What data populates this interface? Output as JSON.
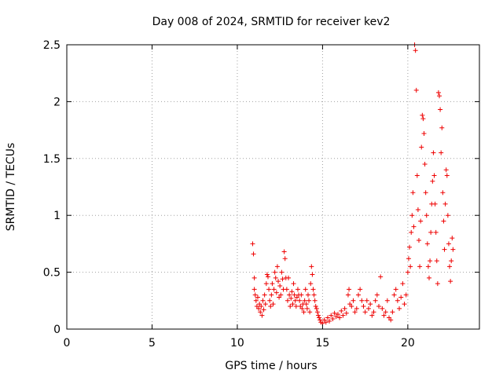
{
  "chart_data": {
    "type": "scatter",
    "title": "Day 008 of 2024, SRMTID for receiver kev2",
    "xlabel": "GPS time / hours",
    "ylabel": "SRMTID / TECUs",
    "xlim": [
      0,
      24.2
    ],
    "ylim": [
      0,
      2.5
    ],
    "xticks": [
      0,
      5,
      10,
      15,
      20
    ],
    "xtick_labels": [
      "0",
      "5",
      "10",
      "15",
      "20"
    ],
    "yticks": [
      0,
      0.5,
      1,
      1.5,
      2,
      2.5
    ],
    "ytick_labels": [
      "0",
      "0.5",
      "1",
      "1.5",
      "2",
      "2.5"
    ],
    "grid": true,
    "marker": "+",
    "series": [
      {
        "name": "kev2",
        "color": "#ee0000",
        "points": [
          [
            10.9,
            0.75
          ],
          [
            10.95,
            0.66
          ],
          [
            11.0,
            0.45
          ],
          [
            11.0,
            0.35
          ],
          [
            11.05,
            0.3
          ],
          [
            11.1,
            0.25
          ],
          [
            11.15,
            0.2
          ],
          [
            11.2,
            0.28
          ],
          [
            11.25,
            0.18
          ],
          [
            11.3,
            0.22
          ],
          [
            11.35,
            0.15
          ],
          [
            11.4,
            0.2
          ],
          [
            11.45,
            0.12
          ],
          [
            11.5,
            0.25
          ],
          [
            11.55,
            0.17
          ],
          [
            11.6,
            0.3
          ],
          [
            11.65,
            0.22
          ],
          [
            11.7,
            0.4
          ],
          [
            11.75,
            0.48
          ],
          [
            11.8,
            0.46
          ],
          [
            11.85,
            0.35
          ],
          [
            11.9,
            0.25
          ],
          [
            11.95,
            0.2
          ],
          [
            12.0,
            0.3
          ],
          [
            12.05,
            0.4
          ],
          [
            12.1,
            0.22
          ],
          [
            12.15,
            0.35
          ],
          [
            12.2,
            0.5
          ],
          [
            12.25,
            0.45
          ],
          [
            12.3,
            0.32
          ],
          [
            12.35,
            0.55
          ],
          [
            12.4,
            0.42
          ],
          [
            12.45,
            0.28
          ],
          [
            12.5,
            0.38
          ],
          [
            12.55,
            0.3
          ],
          [
            12.6,
            0.5
          ],
          [
            12.65,
            0.44
          ],
          [
            12.7,
            0.35
          ],
          [
            12.75,
            0.68
          ],
          [
            12.8,
            0.62
          ],
          [
            12.85,
            0.45
          ],
          [
            12.9,
            0.35
          ],
          [
            12.95,
            0.25
          ],
          [
            13.0,
            0.45
          ],
          [
            13.05,
            0.3
          ],
          [
            13.1,
            0.2
          ],
          [
            13.15,
            0.27
          ],
          [
            13.2,
            0.33
          ],
          [
            13.25,
            0.22
          ],
          [
            13.3,
            0.4
          ],
          [
            13.35,
            0.3
          ],
          [
            13.4,
            0.25
          ],
          [
            13.45,
            0.2
          ],
          [
            13.5,
            0.28
          ],
          [
            13.55,
            0.35
          ],
          [
            13.6,
            0.3
          ],
          [
            13.65,
            0.25
          ],
          [
            13.7,
            0.2
          ],
          [
            13.75,
            0.3
          ],
          [
            13.8,
            0.18
          ],
          [
            13.85,
            0.22
          ],
          [
            13.9,
            0.15
          ],
          [
            13.95,
            0.25
          ],
          [
            14.0,
            0.35
          ],
          [
            14.05,
            0.22
          ],
          [
            14.1,
            0.18
          ],
          [
            14.15,
            0.3
          ],
          [
            14.2,
            0.25
          ],
          [
            14.25,
            0.15
          ],
          [
            14.3,
            0.4
          ],
          [
            14.35,
            0.55
          ],
          [
            14.4,
            0.48
          ],
          [
            14.45,
            0.35
          ],
          [
            14.5,
            0.3
          ],
          [
            14.55,
            0.25
          ],
          [
            14.6,
            0.2
          ],
          [
            14.65,
            0.18
          ],
          [
            14.7,
            0.15
          ],
          [
            14.75,
            0.12
          ],
          [
            14.8,
            0.1
          ],
          [
            14.85,
            0.08
          ],
          [
            14.9,
            0.06
          ],
          [
            15.0,
            0.05
          ],
          [
            15.1,
            0.08
          ],
          [
            15.2,
            0.06
          ],
          [
            15.3,
            0.1
          ],
          [
            15.4,
            0.07
          ],
          [
            15.5,
            0.12
          ],
          [
            15.6,
            0.09
          ],
          [
            15.7,
            0.14
          ],
          [
            15.8,
            0.11
          ],
          [
            15.9,
            0.13
          ],
          [
            16.0,
            0.1
          ],
          [
            16.1,
            0.16
          ],
          [
            16.2,
            0.12
          ],
          [
            16.3,
            0.18
          ],
          [
            16.4,
            0.14
          ],
          [
            16.5,
            0.3
          ],
          [
            16.55,
            0.35
          ],
          [
            16.6,
            0.22
          ],
          [
            16.7,
            0.2
          ],
          [
            16.8,
            0.25
          ],
          [
            16.9,
            0.15
          ],
          [
            17.0,
            0.18
          ],
          [
            17.1,
            0.3
          ],
          [
            17.2,
            0.35
          ],
          [
            17.3,
            0.25
          ],
          [
            17.4,
            0.2
          ],
          [
            17.5,
            0.15
          ],
          [
            17.6,
            0.25
          ],
          [
            17.7,
            0.18
          ],
          [
            17.8,
            0.22
          ],
          [
            17.9,
            0.12
          ],
          [
            18.0,
            0.15
          ],
          [
            18.1,
            0.25
          ],
          [
            18.2,
            0.3
          ],
          [
            18.3,
            0.2
          ],
          [
            18.4,
            0.46
          ],
          [
            18.5,
            0.18
          ],
          [
            18.6,
            0.12
          ],
          [
            18.7,
            0.15
          ],
          [
            18.8,
            0.25
          ],
          [
            18.9,
            0.1
          ],
          [
            19.0,
            0.08
          ],
          [
            19.1,
            0.15
          ],
          [
            19.2,
            0.3
          ],
          [
            19.3,
            0.35
          ],
          [
            19.4,
            0.25
          ],
          [
            19.5,
            0.18
          ],
          [
            19.6,
            0.28
          ],
          [
            19.7,
            0.4
          ],
          [
            19.8,
            0.22
          ],
          [
            19.9,
            0.3
          ],
          [
            20.0,
            0.5
          ],
          [
            20.05,
            0.62
          ],
          [
            20.1,
            0.72
          ],
          [
            20.15,
            0.55
          ],
          [
            20.2,
            0.85
          ],
          [
            20.25,
            1.0
          ],
          [
            20.3,
            1.2
          ],
          [
            20.35,
            0.9
          ],
          [
            20.4,
            2.5
          ],
          [
            20.45,
            2.45
          ],
          [
            20.5,
            2.1
          ],
          [
            20.55,
            1.35
          ],
          [
            20.6,
            1.05
          ],
          [
            20.65,
            0.78
          ],
          [
            20.7,
            0.55
          ],
          [
            20.75,
            0.95
          ],
          [
            20.8,
            1.6
          ],
          [
            20.85,
            1.88
          ],
          [
            20.9,
            1.85
          ],
          [
            20.95,
            1.72
          ],
          [
            21.0,
            1.45
          ],
          [
            21.05,
            1.2
          ],
          [
            21.1,
            1.0
          ],
          [
            21.15,
            0.75
          ],
          [
            21.2,
            0.55
          ],
          [
            21.25,
            0.45
          ],
          [
            21.3,
            0.6
          ],
          [
            21.35,
            0.85
          ],
          [
            21.4,
            1.1
          ],
          [
            21.45,
            1.3
          ],
          [
            21.5,
            1.55
          ],
          [
            21.55,
            1.35
          ],
          [
            21.6,
            1.1
          ],
          [
            21.65,
            0.85
          ],
          [
            21.7,
            0.6
          ],
          [
            21.75,
            0.4
          ],
          [
            21.8,
            2.08
          ],
          [
            21.85,
            2.05
          ],
          [
            21.9,
            1.93
          ],
          [
            21.95,
            1.55
          ],
          [
            22.0,
            1.77
          ],
          [
            22.05,
            1.2
          ],
          [
            22.1,
            0.95
          ],
          [
            22.15,
            0.7
          ],
          [
            22.2,
            1.1
          ],
          [
            22.25,
            1.4
          ],
          [
            22.3,
            1.35
          ],
          [
            22.35,
            1.0
          ],
          [
            22.4,
            0.75
          ],
          [
            22.45,
            0.55
          ],
          [
            22.5,
            0.42
          ],
          [
            22.55,
            0.6
          ],
          [
            22.6,
            0.8
          ],
          [
            22.65,
            0.7
          ]
        ]
      }
    ]
  }
}
